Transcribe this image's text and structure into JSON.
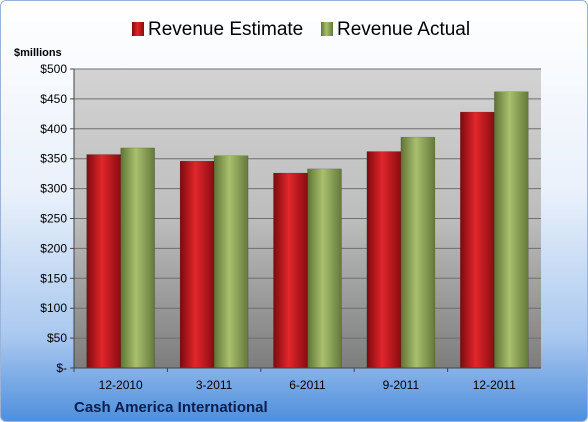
{
  "chart_data": {
    "type": "bar",
    "title": "",
    "ylabel": "$millions",
    "xlabel": "",
    "categories": [
      "12-2010",
      "3-2011",
      "6-2011",
      "9-2011",
      "12-2011"
    ],
    "series": [
      {
        "name": "Revenue Estimate",
        "color": "#c0161b",
        "values": [
          357,
          346,
          326,
          362,
          428
        ]
      },
      {
        "name": "Revenue Actual",
        "color": "#8ea65a",
        "values": [
          368,
          355,
          333,
          386,
          462
        ]
      }
    ],
    "ylim": [
      0,
      500
    ],
    "yticks": [
      0,
      50,
      100,
      150,
      200,
      250,
      300,
      350,
      400,
      450,
      500
    ],
    "ytick_labels": [
      "$-",
      "$50",
      "$100",
      "$150",
      "$200",
      "$250",
      "$300",
      "$350",
      "$400",
      "$450",
      "$500"
    ],
    "grid": true,
    "legend_position": "top"
  },
  "company": "Cash America International"
}
